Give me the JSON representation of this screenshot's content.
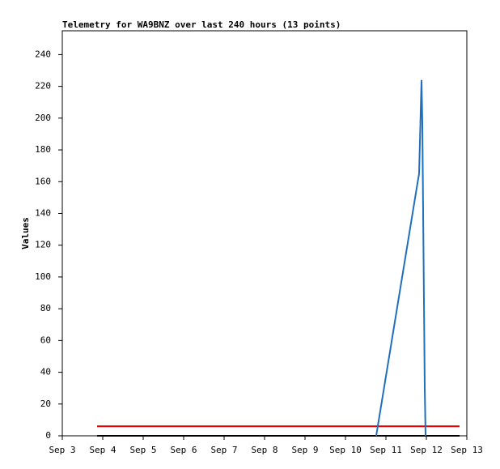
{
  "chart_data": {
    "type": "line",
    "title": "Telemetry for WA9BNZ over last 240 hours (13 points)",
    "ylabel": "Values",
    "xlim": [
      3,
      13
    ],
    "xticks": [
      {
        "value": 3,
        "label": "Sep 3"
      },
      {
        "value": 4,
        "label": "Sep 4"
      },
      {
        "value": 5,
        "label": "Sep 5"
      },
      {
        "value": 6,
        "label": "Sep 6"
      },
      {
        "value": 7,
        "label": "Sep 7"
      },
      {
        "value": 8,
        "label": "Sep 8"
      },
      {
        "value": 9,
        "label": "Sep 9"
      },
      {
        "value": 10,
        "label": "Sep 10"
      },
      {
        "value": 11,
        "label": "Sep 11"
      },
      {
        "value": 12,
        "label": "Sep 12"
      },
      {
        "value": 13,
        "label": "Sep 13"
      }
    ],
    "ylim": [
      0,
      255
    ],
    "yticks": [
      0,
      20,
      40,
      60,
      80,
      100,
      120,
      140,
      160,
      180,
      200,
      220,
      240
    ],
    "series": [
      {
        "color": "#000000",
        "x": [
          3.86,
          12.82
        ],
        "values": [
          0,
          0
        ]
      },
      {
        "color": "#e00000",
        "x": [
          3.86,
          12.82
        ],
        "values": [
          6,
          6
        ]
      },
      {
        "color": "#1f6fbf",
        "x": [
          10.76,
          11.78,
          11.82,
          11.88,
          11.9,
          11.92,
          11.94,
          11.96,
          11.98
        ],
        "values": [
          0,
          159,
          165,
          224,
          197,
          141,
          85,
          30,
          0
        ]
      }
    ]
  }
}
